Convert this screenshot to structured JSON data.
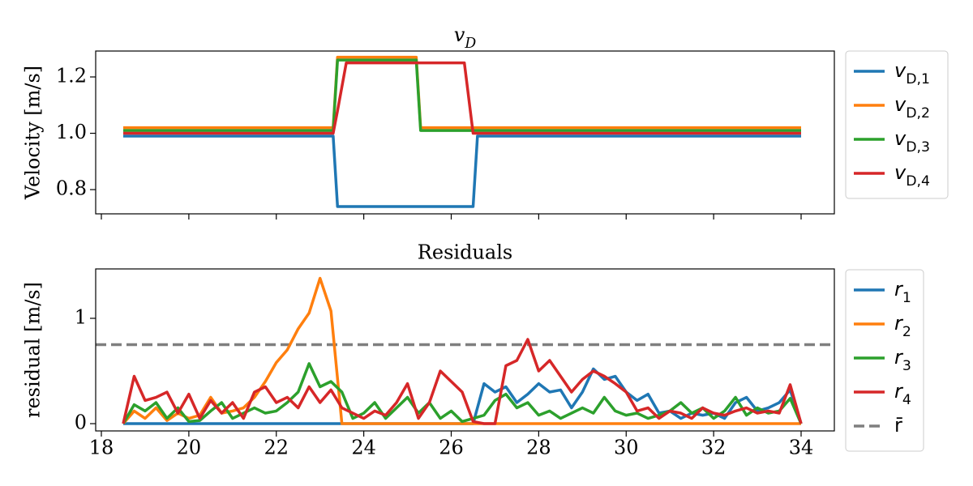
{
  "chart_data": [
    {
      "type": "line",
      "title": "v_D",
      "ylabel": "Velocity [m/s]",
      "x": [
        18.5,
        23.3,
        23.4,
        23.6,
        25.2,
        25.3,
        26.3,
        26.5,
        26.6,
        34
      ],
      "series": [
        {
          "name": "v_D,1",
          "color": "#1f77b4",
          "values": [
            0.99,
            0.99,
            0.74,
            0.74,
            0.74,
            0.74,
            0.74,
            0.74,
            0.99,
            0.99
          ]
        },
        {
          "name": "v_D,2",
          "color": "#ff7f0e",
          "values": [
            1.02,
            1.02,
            1.27,
            1.27,
            1.27,
            1.02,
            1.02,
            1.02,
            1.02,
            1.02
          ]
        },
        {
          "name": "v_D,3",
          "color": "#2ca02c",
          "values": [
            1.01,
            1.01,
            1.26,
            1.26,
            1.26,
            1.01,
            1.01,
            1.01,
            1.01,
            1.01
          ]
        },
        {
          "name": "v_D,4",
          "color": "#d62728",
          "values": [
            1.0,
            1.0,
            1.08,
            1.25,
            1.25,
            1.25,
            1.25,
            1.0,
            1.0,
            1.0
          ]
        }
      ],
      "xlim": [
        17.87,
        34.76
      ],
      "xticks": [
        18,
        20,
        22,
        24,
        26,
        28,
        30,
        32,
        34
      ],
      "xtick_labels": false,
      "ylim": [
        0.714,
        1.292
      ],
      "yticks": [
        0.8,
        {
          "value": 1,
          "label": "1.0"
        },
        1.2
      ],
      "legend": "outside-right",
      "grid": false
    },
    {
      "type": "line",
      "title": "Residuals",
      "ylabel": "residual [m/s]",
      "x": [
        18.5,
        18.75,
        19,
        19.25,
        19.5,
        19.75,
        20,
        20.25,
        20.5,
        20.75,
        21,
        21.25,
        21.5,
        21.75,
        22,
        22.25,
        22.5,
        22.75,
        23,
        23.25,
        23.5,
        23.75,
        24,
        24.25,
        24.5,
        24.75,
        25,
        25.25,
        25.5,
        25.75,
        26,
        26.25,
        26.5,
        26.75,
        27,
        27.25,
        27.5,
        27.75,
        28,
        28.25,
        28.5,
        28.75,
        29,
        29.25,
        29.5,
        29.75,
        30,
        30.25,
        30.5,
        30.75,
        31,
        31.25,
        31.5,
        31.75,
        32,
        32.25,
        32.5,
        32.75,
        33,
        33.25,
        33.5,
        33.75,
        34
      ],
      "series": [
        {
          "name": "r_1",
          "color": "#1f77b4",
          "values": [
            0,
            0,
            0,
            0,
            0,
            0,
            0,
            0,
            0,
            0,
            0,
            0,
            0,
            0,
            0,
            0,
            0,
            0,
            0,
            0,
            0,
            0,
            0,
            0,
            0,
            0,
            0,
            0,
            0,
            0,
            0,
            0,
            0,
            0.38,
            0.3,
            0.35,
            0.2,
            0.28,
            0.38,
            0.3,
            0.32,
            0.15,
            0.3,
            0.52,
            0.42,
            0.45,
            0.3,
            0.22,
            0.28,
            0.1,
            0.12,
            0.05,
            0.1,
            0.08,
            0.1,
            0.05,
            0.2,
            0.25,
            0.12,
            0.15,
            0.2,
            0.32,
            0
          ]
        },
        {
          "name": "r_2",
          "color": "#ff7f0e",
          "values": [
            0,
            0.12,
            0.05,
            0.15,
            0.03,
            0.1,
            0.05,
            0.08,
            0.25,
            0.1,
            0.12,
            0.15,
            0.25,
            0.4,
            0.58,
            0.7,
            0.9,
            1.05,
            1.38,
            1.07,
            0,
            0,
            0,
            0,
            0,
            0,
            0,
            0,
            0,
            0,
            0,
            0,
            0,
            0,
            0,
            0,
            0,
            0,
            0,
            0,
            0,
            0,
            0,
            0,
            0,
            0,
            0,
            0,
            0,
            0,
            0,
            0,
            0,
            0,
            0,
            0,
            0,
            0,
            0,
            0,
            0,
            0,
            0
          ]
        },
        {
          "name": "r_3",
          "color": "#2ca02c",
          "values": [
            0,
            0.18,
            0.12,
            0.2,
            0.05,
            0.15,
            0.02,
            0.03,
            0.12,
            0.2,
            0.05,
            0.1,
            0.15,
            0.1,
            0.12,
            0.2,
            0.3,
            0.57,
            0.35,
            0.4,
            0.3,
            0.05,
            0.1,
            0.2,
            0.05,
            0.15,
            0.25,
            0.1,
            0.2,
            0.05,
            0.12,
            0.02,
            0.05,
            0.08,
            0.22,
            0.28,
            0.15,
            0.2,
            0.08,
            0.12,
            0.05,
            0.1,
            0.15,
            0.1,
            0.25,
            0.12,
            0.08,
            0.1,
            0.05,
            0.08,
            0.12,
            0.2,
            0.1,
            0.15,
            0.05,
            0.12,
            0.25,
            0.08,
            0.15,
            0.1,
            0.12,
            0.24,
            0
          ]
        },
        {
          "name": "r_4",
          "color": "#d62728",
          "values": [
            0,
            0.45,
            0.22,
            0.25,
            0.3,
            0.1,
            0.28,
            0.05,
            0.22,
            0.1,
            0.2,
            0.05,
            0.3,
            0.35,
            0.2,
            0.25,
            0.15,
            0.35,
            0.2,
            0.32,
            0.15,
            0.1,
            0.05,
            0.12,
            0.08,
            0.2,
            0.38,
            0.05,
            0.2,
            0.5,
            0.4,
            0.3,
            0.02,
            0,
            0,
            0.55,
            0.6,
            0.8,
            0.5,
            0.6,
            0.45,
            0.3,
            0.42,
            0.5,
            0.45,
            0.38,
            0.3,
            0.12,
            0.15,
            0.05,
            0.12,
            0.1,
            0.05,
            0.15,
            0.1,
            0.08,
            0.12,
            0.15,
            0.1,
            0.12,
            0.1,
            0.37,
            0
          ]
        }
      ],
      "reference_line": {
        "name": "r̄",
        "value": 0.75,
        "color": "#7f7f7f",
        "style": "dashed"
      },
      "xlim": [
        17.87,
        34.76
      ],
      "xticks": [
        18,
        20,
        22,
        24,
        26,
        28,
        30,
        32,
        34
      ],
      "xtick_labels": true,
      "ylim": [
        -0.069,
        1.469
      ],
      "yticks": [
        0,
        1
      ],
      "legend": "outside-right",
      "grid": false
    }
  ]
}
